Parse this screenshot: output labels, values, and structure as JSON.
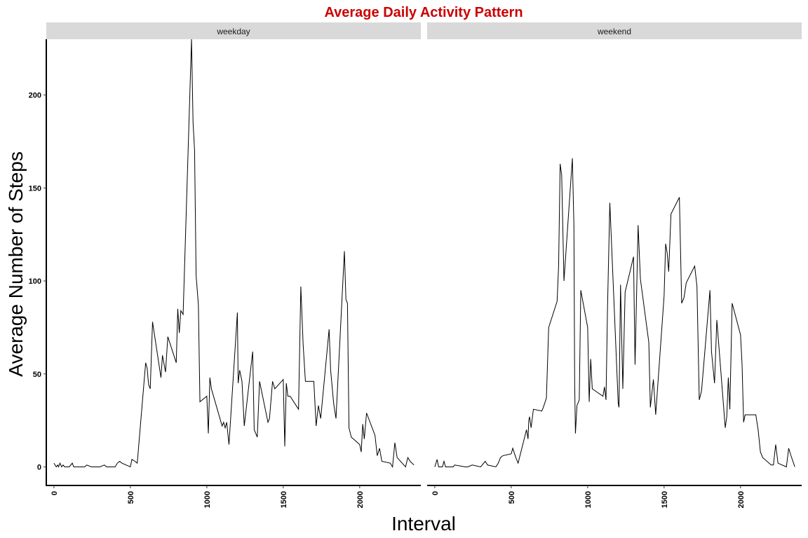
{
  "chart_data": {
    "type": "line",
    "title": "Average Daily Activity Pattern",
    "xlabel": "Interval",
    "ylabel": "Average Number of Steps",
    "xlim": [
      -50,
      2400
    ],
    "ylim": [
      -10,
      230
    ],
    "x_ticks": [
      0,
      500,
      1000,
      1500,
      2000
    ],
    "y_ticks": [
      0,
      50,
      100,
      150,
      200
    ],
    "grid": false,
    "legend": "none",
    "colors": {
      "title": "#cc0000",
      "line": "#000000",
      "strip": "#d9d9d9"
    },
    "panels": [
      {
        "name": "weekday",
        "x": [
          0,
          15,
          25,
          30,
          40,
          50,
          60,
          70,
          100,
          120,
          130,
          200,
          215,
          245,
          300,
          330,
          345,
          400,
          415,
          430,
          445,
          500,
          510,
          530,
          545,
          600,
          610,
          615,
          620,
          630,
          645,
          700,
          710,
          730,
          745,
          800,
          810,
          820,
          830,
          845,
          900,
          910,
          915,
          920,
          930,
          945,
          955,
          1000,
          1010,
          1020,
          1030,
          1100,
          1110,
          1120,
          1130,
          1145,
          1200,
          1205,
          1215,
          1230,
          1245,
          1300,
          1310,
          1330,
          1345,
          1400,
          1410,
          1430,
          1445,
          1500,
          1510,
          1520,
          1530,
          1545,
          1600,
          1615,
          1630,
          1645,
          1700,
          1715,
          1730,
          1745,
          1800,
          1810,
          1830,
          1845,
          1900,
          1910,
          1920,
          1930,
          1945,
          2000,
          2010,
          2020,
          2030,
          2045,
          2100,
          2115,
          2130,
          2145,
          2200,
          2215,
          2230,
          2245,
          2300,
          2315,
          2330,
          2355
        ],
        "y": [
          2,
          0,
          1,
          0,
          2,
          0,
          1,
          0,
          0,
          2,
          0,
          0,
          1,
          0,
          0,
          1,
          0,
          0,
          2,
          3,
          2,
          0,
          4,
          3,
          2,
          56,
          53,
          48,
          44,
          42,
          78,
          48,
          60,
          51,
          70,
          56,
          85,
          72,
          84,
          82,
          230,
          185,
          178,
          170,
          103,
          87,
          35,
          38,
          18,
          48,
          42,
          22,
          24,
          21,
          24,
          12,
          83,
          45,
          52,
          46,
          22,
          62,
          20,
          16,
          46,
          24,
          26,
          46,
          42,
          47,
          11,
          45,
          38,
          38,
          31,
          97,
          66,
          46,
          46,
          22,
          33,
          26,
          74,
          52,
          34,
          26,
          116,
          90,
          88,
          21,
          16,
          12,
          8,
          23,
          15,
          29,
          17,
          6,
          10,
          3,
          2,
          0,
          13,
          5,
          0,
          5,
          3,
          1
        ]
      },
      {
        "name": "weekend",
        "x": [
          0,
          15,
          25,
          30,
          40,
          50,
          60,
          70,
          100,
          120,
          130,
          200,
          215,
          245,
          300,
          330,
          345,
          400,
          415,
          430,
          445,
          500,
          510,
          530,
          545,
          600,
          610,
          615,
          620,
          630,
          645,
          700,
          710,
          730,
          745,
          800,
          810,
          820,
          830,
          845,
          900,
          910,
          915,
          920,
          930,
          945,
          955,
          1000,
          1010,
          1020,
          1030,
          1100,
          1110,
          1120,
          1130,
          1145,
          1200,
          1205,
          1215,
          1230,
          1245,
          1300,
          1310,
          1330,
          1345,
          1400,
          1410,
          1430,
          1445,
          1500,
          1510,
          1520,
          1530,
          1545,
          1600,
          1615,
          1630,
          1645,
          1700,
          1715,
          1730,
          1745,
          1800,
          1810,
          1830,
          1845,
          1900,
          1910,
          1920,
          1930,
          1945,
          2000,
          2010,
          2020,
          2030,
          2045,
          2100,
          2115,
          2130,
          2145,
          2200,
          2215,
          2230,
          2245,
          2300,
          2315,
          2330,
          2355
        ],
        "y": [
          0,
          4,
          0,
          0,
          0,
          0,
          3,
          0,
          0,
          0,
          1,
          0,
          0,
          1,
          0,
          3,
          1,
          0,
          2,
          5,
          6,
          7,
          10,
          5,
          2,
          20,
          15,
          25,
          27,
          21,
          31,
          30,
          32,
          37,
          75,
          89,
          108,
          163,
          157,
          100,
          166,
          130,
          45,
          18,
          33,
          36,
          95,
          75,
          35,
          58,
          42,
          38,
          43,
          36,
          86,
          142,
          34,
          32,
          98,
          42,
          94,
          113,
          55,
          130,
          101,
          67,
          32,
          47,
          28,
          92,
          120,
          115,
          105,
          136,
          145,
          88,
          91,
          99,
          108,
          97,
          36,
          41,
          95,
          62,
          45,
          79,
          21,
          27,
          48,
          31,
          88,
          71,
          55,
          24,
          28,
          28,
          28,
          20,
          8,
          5,
          1,
          1,
          12,
          2,
          0,
          10,
          6,
          0
        ]
      }
    ]
  }
}
